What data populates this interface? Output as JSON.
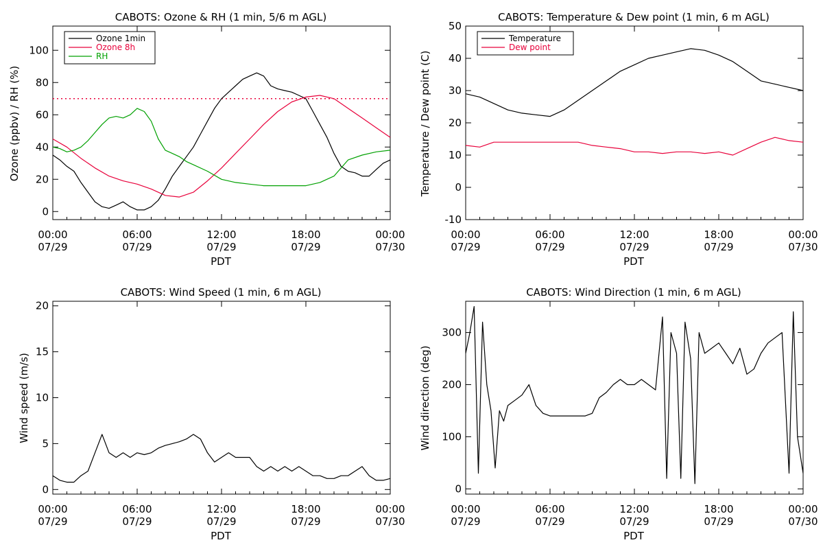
{
  "chart_data": [
    {
      "type": "line",
      "title": "CABOTS: Ozone & RH (1 min, 5/6 m AGL)",
      "ylabel": "Ozone (ppbv) / RH (%)",
      "xlabel": "PDT",
      "x_ticks": [
        "00:00\n07/29",
        "06:00\n07/29",
        "12:00\n07/29",
        "18:00\n07/29",
        "00:00\n07/30"
      ],
      "xlim_hours": [
        0,
        24
      ],
      "ylim": [
        -5,
        115
      ],
      "y_ticks": [
        0,
        20,
        40,
        60,
        80,
        100
      ],
      "legend_position": "top-left",
      "reference_line": {
        "y": 70,
        "style": "dotted",
        "color": "#e8003a"
      },
      "series": [
        {
          "name": "Ozone 1min",
          "color": "#000000",
          "x": [
            0,
            0.5,
            1,
            1.5,
            2,
            2.5,
            3,
            3.5,
            4,
            4.5,
            5,
            5.5,
            6,
            6.5,
            7,
            7.5,
            8,
            8.5,
            9,
            9.5,
            10,
            10.5,
            11,
            11.5,
            12,
            12.5,
            13,
            13.5,
            14,
            14.5,
            15,
            15.5,
            16,
            16.5,
            17,
            17.5,
            18,
            18.5,
            19,
            19.5,
            20,
            20.5,
            21,
            21.5,
            22,
            22.5,
            23,
            23.5,
            24
          ],
          "y": [
            35,
            32,
            28,
            25,
            18,
            12,
            6,
            3,
            2,
            4,
            6,
            3,
            1,
            1,
            3,
            7,
            14,
            22,
            28,
            34,
            40,
            48,
            56,
            64,
            70,
            74,
            78,
            82,
            84,
            86,
            84,
            78,
            76,
            75,
            74,
            72,
            70,
            62,
            54,
            46,
            36,
            28,
            25,
            24,
            22,
            22,
            26,
            30,
            32
          ]
        },
        {
          "name": "Ozone 8h",
          "color": "#e8003a",
          "x": [
            0,
            1,
            2,
            3,
            4,
            5,
            6,
            7,
            8,
            9,
            10,
            11,
            12,
            13,
            14,
            15,
            16,
            17,
            18,
            19,
            20,
            21,
            22,
            23,
            24
          ],
          "y": [
            45,
            40,
            33,
            27,
            22,
            19,
            17,
            14,
            10,
            9,
            12,
            19,
            27,
            36,
            45,
            54,
            62,
            68,
            71,
            72,
            70,
            64,
            58,
            52,
            46
          ]
        },
        {
          "name": "RH",
          "color": "#00a000",
          "x": [
            0,
            0.5,
            1,
            1.5,
            2,
            2.5,
            3,
            3.5,
            4,
            4.5,
            5,
            5.5,
            6,
            6.5,
            7,
            7.5,
            8,
            8.5,
            9,
            9.5,
            10,
            11,
            12,
            13,
            14,
            15,
            16,
            17,
            18,
            19,
            20,
            21,
            22,
            23,
            24
          ],
          "y": [
            40,
            39,
            37,
            38,
            40,
            44,
            49,
            54,
            58,
            59,
            58,
            60,
            64,
            62,
            56,
            45,
            38,
            36,
            34,
            31,
            29,
            25,
            20,
            18,
            17,
            16,
            16,
            16,
            16,
            18,
            22,
            32,
            35,
            37,
            38
          ]
        }
      ]
    },
    {
      "type": "line",
      "title": "CABOTS: Temperature & Dew point (1 min, 6 m AGL)",
      "ylabel": "Temperature / Dew point (C)",
      "xlabel": "PDT",
      "x_ticks": [
        "00:00\n07/29",
        "06:00\n07/29",
        "12:00\n07/29",
        "18:00\n07/29",
        "00:00\n07/30"
      ],
      "xlim_hours": [
        0,
        24
      ],
      "ylim": [
        -10,
        50
      ],
      "y_ticks": [
        -10,
        0,
        10,
        20,
        30,
        40,
        50
      ],
      "legend_position": "top-left",
      "series": [
        {
          "name": "Temperature",
          "color": "#000000",
          "x": [
            0,
            1,
            2,
            3,
            4,
            5,
            6,
            7,
            8,
            9,
            10,
            11,
            12,
            13,
            14,
            15,
            16,
            17,
            18,
            19,
            20,
            21,
            22,
            23,
            24
          ],
          "y": [
            29,
            28,
            26,
            24,
            23,
            22.5,
            22,
            24,
            27,
            30,
            33,
            36,
            38,
            40,
            41,
            42,
            43,
            42.5,
            41,
            39,
            36,
            33,
            32,
            31,
            30
          ]
        },
        {
          "name": "Dew point",
          "color": "#e8003a",
          "x": [
            0,
            1,
            2,
            3,
            4,
            5,
            6,
            7,
            8,
            9,
            10,
            11,
            12,
            13,
            14,
            15,
            16,
            17,
            18,
            19,
            20,
            21,
            22,
            23,
            24
          ],
          "y": [
            13,
            12.5,
            14,
            14,
            14,
            14,
            14,
            14,
            14,
            13,
            12.5,
            12,
            11,
            11,
            10.5,
            11,
            11,
            10.5,
            11,
            10,
            12,
            14,
            15.5,
            14.5,
            14
          ]
        }
      ]
    },
    {
      "type": "line",
      "title": "CABOTS: Wind Speed (1 min, 6 m AGL)",
      "ylabel": "Wind speed (m/s)",
      "xlabel": "PDT",
      "x_ticks": [
        "00:00\n07/29",
        "06:00\n07/29",
        "12:00\n07/29",
        "18:00\n07/29",
        "00:00\n07/30"
      ],
      "xlim_hours": [
        0,
        24
      ],
      "ylim": [
        -0.5,
        20.5
      ],
      "y_ticks": [
        0,
        5,
        10,
        15,
        20
      ],
      "series": [
        {
          "name": "",
          "color": "#000000",
          "x": [
            0,
            0.5,
            1,
            1.5,
            2,
            2.5,
            3,
            3.5,
            4,
            4.5,
            5,
            5.5,
            6,
            6.5,
            7,
            7.5,
            8,
            8.5,
            9,
            9.5,
            10,
            10.5,
            11,
            11.5,
            12,
            12.5,
            13,
            13.5,
            14,
            14.5,
            15,
            15.5,
            16,
            16.5,
            17,
            17.5,
            18,
            18.5,
            19,
            19.5,
            20,
            20.5,
            21,
            21.5,
            22,
            22.5,
            23,
            23.5,
            24
          ],
          "y": [
            1.5,
            1,
            0.8,
            0.8,
            1.5,
            2,
            4,
            6,
            4,
            3.5,
            4,
            3.5,
            4,
            3.8,
            4,
            4.5,
            4.8,
            5,
            5.2,
            5.5,
            6,
            5.5,
            4,
            3,
            3.5,
            4,
            3.5,
            3.5,
            3.5,
            2.5,
            2,
            2.5,
            2,
            2.5,
            2,
            2.5,
            2,
            1.5,
            1.5,
            1.2,
            1.2,
            1.5,
            1.5,
            2,
            2.5,
            1.5,
            1,
            1,
            1.2
          ]
        }
      ]
    },
    {
      "type": "line",
      "title": "CABOTS: Wind Direction (1 min, 6 m AGL)",
      "ylabel": "Wind direction (deg)",
      "xlabel": "PDT",
      "x_ticks": [
        "00:00\n07/29",
        "06:00\n07/29",
        "12:00\n07/29",
        "18:00\n07/29",
        "00:00\n07/30"
      ],
      "xlim_hours": [
        0,
        24
      ],
      "ylim": [
        -10,
        360
      ],
      "y_ticks": [
        0,
        100,
        200,
        300
      ],
      "series": [
        {
          "name": "",
          "color": "#000000",
          "x": [
            0,
            0.3,
            0.6,
            0.9,
            1.2,
            1.5,
            1.8,
            2.1,
            2.4,
            2.7,
            3,
            3.5,
            4,
            4.5,
            5,
            5.5,
            6,
            6.5,
            7,
            7.5,
            8,
            8.5,
            9,
            9.5,
            10,
            10.5,
            11,
            11.5,
            12,
            12.5,
            13,
            13.5,
            14,
            14.3,
            14.6,
            15,
            15.3,
            15.6,
            16,
            16.3,
            16.6,
            17,
            17.5,
            18,
            18.5,
            19,
            19.5,
            20,
            20.5,
            21,
            21.5,
            22,
            22.5,
            23,
            23.3,
            23.6,
            24
          ],
          "y": [
            260,
            300,
            350,
            30,
            320,
            200,
            150,
            40,
            150,
            130,
            160,
            170,
            180,
            200,
            160,
            145,
            140,
            140,
            140,
            140,
            140,
            140,
            145,
            175,
            185,
            200,
            210,
            200,
            200,
            210,
            200,
            190,
            330,
            20,
            300,
            260,
            20,
            320,
            250,
            10,
            300,
            260,
            270,
            280,
            260,
            240,
            270,
            220,
            230,
            260,
            280,
            290,
            300,
            30,
            340,
            100,
            30
          ]
        }
      ]
    }
  ]
}
